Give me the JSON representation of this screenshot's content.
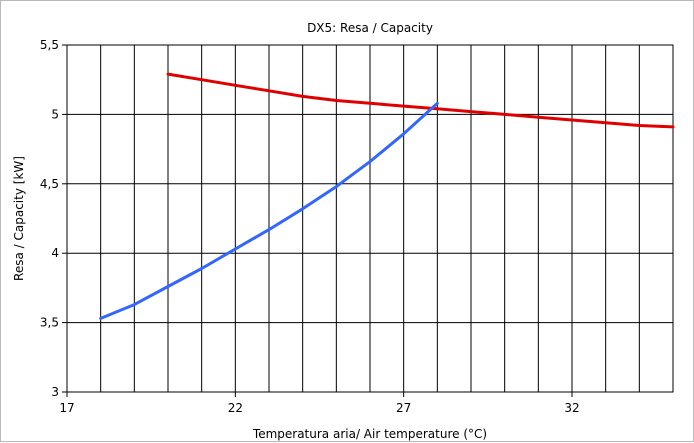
{
  "chart_data": {
    "type": "line",
    "title": "DX5: Resa / Capacity",
    "xlabel": "Temperatura aria/ Air temperature (°C)",
    "ylabel": "Resa / Capacity [kW]",
    "xlim": [
      17,
      35
    ],
    "ylim": [
      3,
      5.5
    ],
    "x_ticks": [
      17,
      22,
      27,
      32
    ],
    "x_tick_labels": [
      "17",
      "22",
      "27",
      "32"
    ],
    "y_ticks": [
      3,
      3.5,
      4,
      4.5,
      5,
      5.5
    ],
    "y_tick_labels": [
      "3",
      "3,5",
      "4",
      "4,5",
      "5",
      "5,5"
    ],
    "x_grid_step": 1,
    "grid": true,
    "legend": "none",
    "series": [
      {
        "color": "#e00000",
        "x": [
          20,
          21,
          22,
          23,
          24,
          25,
          26,
          27,
          28,
          29,
          30,
          31,
          32,
          33,
          34,
          35
        ],
        "values": [
          5.29,
          5.25,
          5.21,
          5.17,
          5.13,
          5.1,
          5.08,
          5.06,
          5.04,
          5.02,
          5.0,
          4.98,
          4.96,
          4.94,
          4.92,
          4.91
        ]
      },
      {
        "color": "#3366ff",
        "x": [
          18,
          19,
          20,
          21,
          22,
          23,
          24,
          25,
          26,
          27,
          28
        ],
        "values": [
          3.53,
          3.63,
          3.76,
          3.89,
          4.03,
          4.17,
          4.32,
          4.48,
          4.66,
          4.86,
          5.08
        ]
      }
    ]
  }
}
